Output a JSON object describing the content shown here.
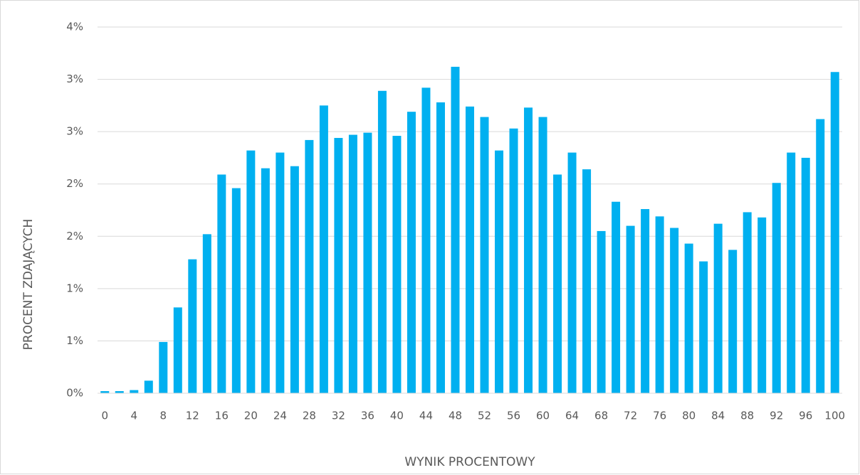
{
  "chart_data": {
    "type": "bar",
    "x_label": "WYNIK PROCENTOWY",
    "y_label": "PROCENT ZDAJĄCYCH",
    "categories": [
      "0",
      null,
      "4",
      null,
      "8",
      null,
      "12",
      null,
      "16",
      null,
      "20",
      null,
      "24",
      null,
      "28",
      null,
      "32",
      null,
      "36",
      null,
      "40",
      null,
      "44",
      null,
      "48",
      null,
      "52",
      null,
      "56",
      null,
      "60",
      null,
      "64",
      null,
      "68",
      null,
      "72",
      null,
      "76",
      null,
      "80",
      null,
      "84",
      null,
      "88",
      null,
      "92",
      null,
      "96",
      null,
      "100"
    ],
    "values": [
      0.02,
      0.02,
      0.03,
      0.12,
      0.49,
      0.82,
      1.28,
      1.52,
      2.09,
      1.96,
      2.32,
      2.15,
      2.3,
      2.17,
      2.42,
      2.75,
      2.44,
      2.47,
      2.49,
      2.89,
      2.46,
      2.69,
      2.92,
      2.78,
      3.12,
      2.74,
      2.64,
      2.32,
      2.53,
      2.73,
      2.64,
      2.09,
      2.3,
      2.14,
      1.55,
      1.83,
      1.6,
      1.76,
      1.69,
      1.58,
      1.43,
      1.26,
      1.62,
      1.37,
      1.73,
      1.68,
      2.01,
      2.3,
      2.25,
      2.62,
      3.07
    ],
    "color": "#00b0f0",
    "ylim": [
      0,
      3.5
    ],
    "yticks": [
      {
        "value": 0,
        "label": "0%"
      },
      {
        "value": 0.5,
        "label": "1%"
      },
      {
        "value": 1,
        "label": "1%"
      },
      {
        "value": 1.5,
        "label": "2%"
      },
      {
        "value": 2,
        "label": "2%"
      },
      {
        "value": 2.5,
        "label": "3%"
      },
      {
        "value": 3,
        "label": "3%"
      },
      {
        "value": 3.5,
        "label": "4%"
      }
    ],
    "grid": true
  }
}
